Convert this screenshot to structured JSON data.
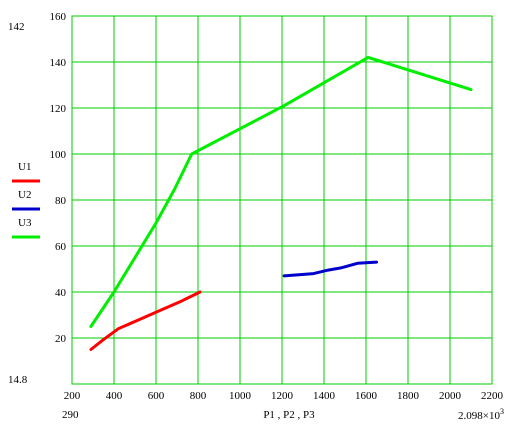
{
  "chart_data": {
    "type": "line",
    "xlabel": "P1 , P2 , P3",
    "ylabel": "",
    "xlim": [
      200,
      2200
    ],
    "ylim": [
      0,
      160
    ],
    "x_ticks": [
      200,
      400,
      600,
      800,
      1000,
      1200,
      1400,
      1600,
      1800,
      2000,
      2200
    ],
    "y_ticks": [
      20,
      40,
      60,
      80,
      100,
      120,
      140,
      160
    ],
    "grid": true,
    "legend_position": "left",
    "range_labels": {
      "y_max": "142",
      "y_min": "14.8",
      "x_min": "290",
      "x_max_base": "2.098×10",
      "x_max_exp": "3"
    },
    "series": [
      {
        "name": "U1",
        "color": "#ff0000",
        "points": [
          [
            290,
            15
          ],
          [
            345,
            19
          ],
          [
            420,
            24
          ],
          [
            520,
            28
          ],
          [
            620,
            32
          ],
          [
            720,
            36
          ],
          [
            810,
            40
          ]
        ]
      },
      {
        "name": "U2",
        "color": "#0000cc",
        "points": [
          [
            1210,
            47
          ],
          [
            1280,
            47.5
          ],
          [
            1350,
            48
          ],
          [
            1420,
            49.5
          ],
          [
            1480,
            50.5
          ],
          [
            1560,
            52.5
          ],
          [
            1650,
            53
          ]
        ]
      },
      {
        "name": "U3",
        "color": "#00ee00",
        "points": [
          [
            290,
            25
          ],
          [
            400,
            40
          ],
          [
            500,
            55
          ],
          [
            600,
            70
          ],
          [
            690,
            85
          ],
          [
            770,
            100
          ],
          [
            1210,
            121
          ],
          [
            1610,
            142
          ],
          [
            2100,
            128
          ]
        ]
      }
    ]
  }
}
